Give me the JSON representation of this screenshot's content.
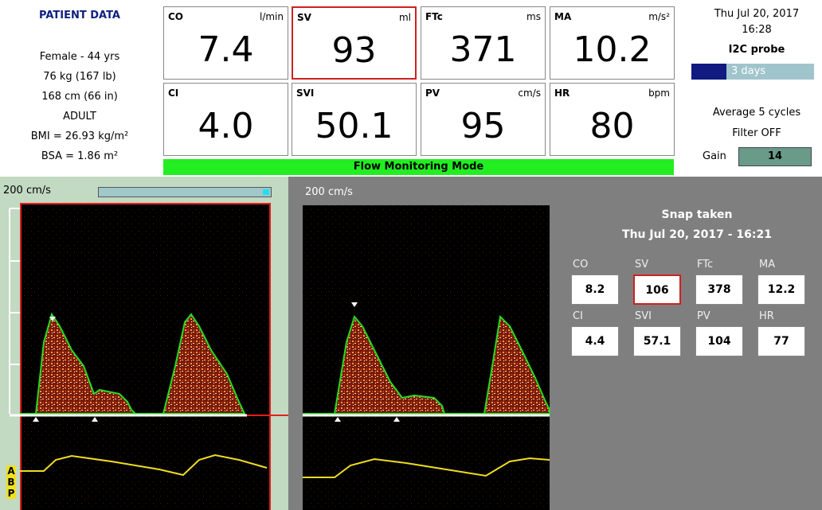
{
  "patient": {
    "title": "PATIENT DATA",
    "lines": [
      "Female -  44 yrs",
      "76 kg (167 lb)",
      "168 cm (66 in)",
      "ADULT",
      "BMI = 26.93 kg/m²",
      "BSA = 1.86 m²"
    ]
  },
  "parameters": [
    {
      "label": "CO",
      "unit": "l/min",
      "value": 7.4
    },
    {
      "label": "SV",
      "unit": "ml",
      "value": 93
    },
    {
      "label": "FTc",
      "unit": "ms",
      "value": 371
    },
    {
      "label": "MA",
      "unit": "m/s²",
      "value": 10.2
    },
    {
      "label": "CI",
      "value": "4.0"
    },
    {
      "label": "SVI",
      "value": 50.1
    },
    {
      "label": "PV",
      "unit": "cm/s",
      "value": 95
    },
    {
      "label": "HR",
      "unit": "bpm",
      "value": 80
    }
  ],
  "mode": "Flow Monitoring Mode",
  "status": {
    "date": "Thu Jul 20, 2017",
    "time": "16:28",
    "probe": "I2C probe",
    "probe_days": "3 days",
    "averaging": "Average 5 cycles",
    "filter": "Filter OFF",
    "gain_label": "Gain",
    "gain_value": 14
  },
  "waveforms": {
    "left_scale": "200 cm/s",
    "right_scale": "200 cm/s",
    "abp_letters": [
      "A",
      "B",
      "P"
    ]
  },
  "snapshot": {
    "title": "Snap taken",
    "datetime": "Thu Jul 20, 2017 - 16:21",
    "parameters": [
      {
        "label": "CO",
        "value": 8.2
      },
      {
        "label": "SV",
        "value": 106
      },
      {
        "label": "FTc",
        "value": 378
      },
      {
        "label": "MA",
        "value": 12.2
      },
      {
        "label": "CI",
        "value": 4.4
      },
      {
        "label": "SVI",
        "value": 57.1
      },
      {
        "label": "PV",
        "value": 104
      },
      {
        "label": "HR",
        "value": 77
      }
    ]
  }
}
